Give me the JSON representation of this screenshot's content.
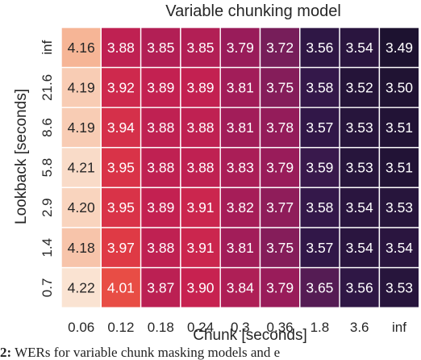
{
  "chart_data": {
    "type": "heatmap",
    "title": "Variable chunking model",
    "xlabel": "Chunk [seconds]",
    "ylabel": "Lookback [seconds]",
    "x_categories": [
      "0.06",
      "0.12",
      "0.18",
      "0.24",
      "0.3",
      "0.36",
      "1.8",
      "3.6",
      "inf"
    ],
    "y_categories": [
      "inf",
      "21.6",
      "8.6",
      "5.8",
      "2.9",
      "1.4",
      "0.7"
    ],
    "values": [
      [
        "4.16",
        "3.88",
        "3.85",
        "3.85",
        "3.79",
        "3.72",
        "3.56",
        "3.54",
        "3.49"
      ],
      [
        "4.19",
        "3.92",
        "3.89",
        "3.89",
        "3.81",
        "3.75",
        "3.58",
        "3.52",
        "3.50"
      ],
      [
        "4.19",
        "3.94",
        "3.88",
        "3.88",
        "3.81",
        "3.78",
        "3.57",
        "3.53",
        "3.51"
      ],
      [
        "4.21",
        "3.95",
        "3.88",
        "3.88",
        "3.83",
        "3.79",
        "3.59",
        "3.53",
        "3.51"
      ],
      [
        "4.20",
        "3.95",
        "3.89",
        "3.91",
        "3.82",
        "3.77",
        "3.58",
        "3.54",
        "3.53"
      ],
      [
        "4.18",
        "3.97",
        "3.88",
        "3.91",
        "3.81",
        "3.75",
        "3.57",
        "3.54",
        "3.54"
      ],
      [
        "4.22",
        "4.01",
        "3.87",
        "3.90",
        "3.84",
        "3.79",
        "3.65",
        "3.56",
        "3.53"
      ]
    ],
    "colormap": "rocket",
    "grid": false,
    "legend": "none"
  },
  "caption": {
    "label": "2:",
    "text": "WERs for variable chunk masking models and e"
  }
}
